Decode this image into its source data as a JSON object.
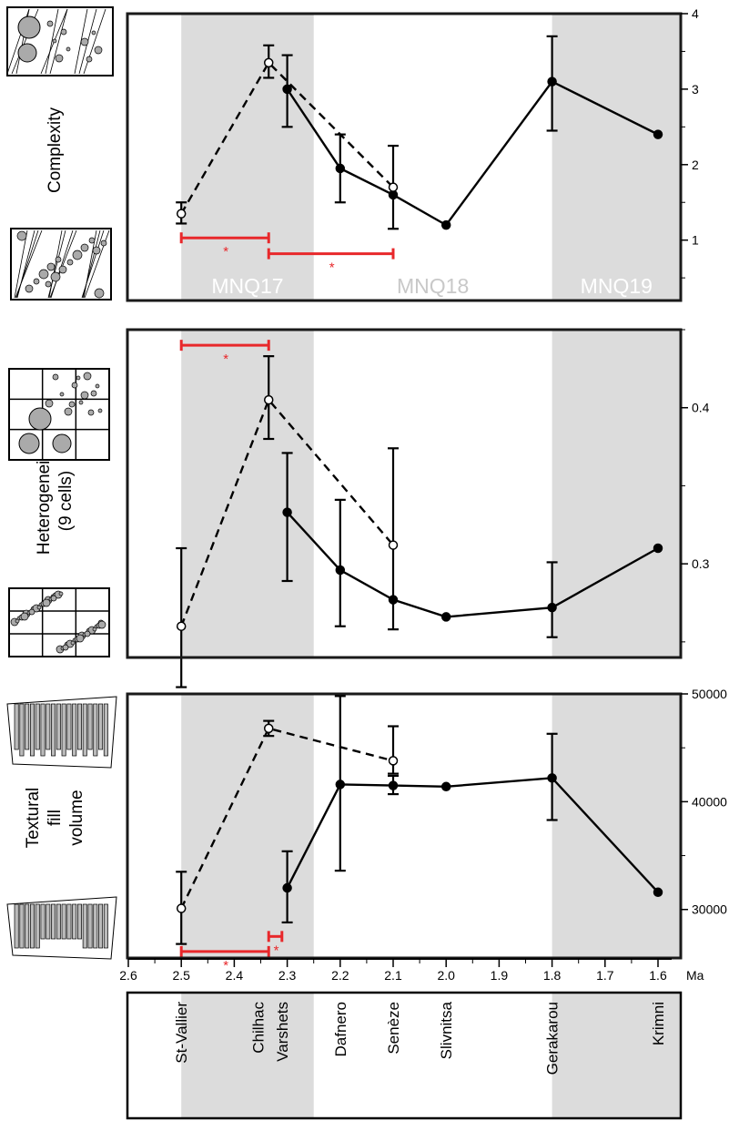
{
  "colors": {
    "shade": "#dcdcdc",
    "sig": "#e8282b",
    "line": "#000000"
  },
  "zones": [
    {
      "label": "MNQ17",
      "from": 2.5,
      "to": 2.25,
      "shaded": true
    },
    {
      "label": "MNQ18",
      "from": 2.25,
      "to": 1.8,
      "shaded": false
    },
    {
      "label": "MNQ19",
      "from": 1.8,
      "to": 1.55,
      "shaded": true
    }
  ],
  "x_axis": {
    "ticks": [
      "2.6",
      "2.5",
      "2.4",
      "2.3",
      "2.2",
      "2.1",
      "2.0",
      "1.9",
      "1.8",
      "1.7",
      "1.6"
    ],
    "unit": "Ma"
  },
  "sites": [
    "St-Vallier",
    "Chilhac",
    "Varshets",
    "Dafnero",
    "Senèze",
    "Slivnitsa",
    "Gerakarou",
    "Krimni"
  ],
  "chart_data": [
    {
      "type": "line",
      "ylabel": "Complexity",
      "ylim": [
        0.2,
        4.0
      ],
      "yticks": [
        "1",
        "2",
        "3",
        "4"
      ],
      "series": [
        {
          "style": "solid",
          "points": [
            {
              "x": 2.3,
              "y": 3.0,
              "lo": 2.5,
              "hi": 3.45
            },
            {
              "x": 2.2,
              "y": 1.95,
              "lo": 1.5,
              "hi": 2.4
            },
            {
              "x": 2.1,
              "y": 1.6,
              "lo": 1.15,
              "hi": 2.25
            },
            {
              "x": 2.0,
              "y": 1.2
            },
            {
              "x": 1.8,
              "y": 3.1,
              "lo": 2.45,
              "hi": 3.7
            },
            {
              "x": 1.6,
              "y": 2.4
            }
          ]
        },
        {
          "style": "dashed",
          "points": [
            {
              "x": 2.5,
              "y": 1.35,
              "lo": 1.22,
              "hi": 1.5
            },
            {
              "x": 2.335,
              "y": 3.35,
              "lo": 3.15,
              "hi": 3.58
            },
            {
              "x": 2.1,
              "y": 1.7
            }
          ]
        }
      ],
      "significance": [
        {
          "from": 2.5,
          "to": 2.335,
          "y": 1.03,
          "label": "*"
        },
        {
          "from": 2.335,
          "to": 2.1,
          "y": 0.82,
          "label": "*"
        }
      ]
    },
    {
      "type": "line",
      "ylabel": "Heterogeneity\n(9 cells)",
      "ylim": [
        0.24,
        0.45
      ],
      "yticks": [
        "0.3",
        "0.4"
      ],
      "series": [
        {
          "style": "solid",
          "points": [
            {
              "x": 2.3,
              "y": 0.333,
              "lo": 0.289,
              "hi": 0.371
            },
            {
              "x": 2.2,
              "y": 0.296,
              "lo": 0.26,
              "hi": 0.341
            },
            {
              "x": 2.1,
              "y": 0.277,
              "lo": 0.258,
              "hi": 0.374
            },
            {
              "x": 2.0,
              "y": 0.266
            },
            {
              "x": 1.8,
              "y": 0.272,
              "lo": 0.253,
              "hi": 0.301
            },
            {
              "x": 1.6,
              "y": 0.31
            }
          ]
        },
        {
          "style": "dashed",
          "points": [
            {
              "x": 2.5,
              "y": 0.26,
              "lo": 0.221,
              "hi": 0.31
            },
            {
              "x": 2.335,
              "y": 0.405,
              "lo": 0.38,
              "hi": 0.433
            },
            {
              "x": 2.1,
              "y": 0.312
            }
          ]
        }
      ],
      "significance": [
        {
          "from": 2.5,
          "to": 2.335,
          "y": 0.44,
          "label": "*"
        }
      ]
    },
    {
      "type": "line",
      "ylabel": "Textural\nfill\nvolume",
      "ylim": [
        25500,
        50000
      ],
      "yticks": [
        "30000",
        "40000",
        "50000"
      ],
      "series": [
        {
          "style": "solid",
          "points": [
            {
              "x": 2.3,
              "y": 32000,
              "lo": 28800,
              "hi": 35400
            },
            {
              "x": 2.2,
              "y": 41600,
              "lo": 33600,
              "hi": 49800
            },
            {
              "x": 2.1,
              "y": 41500,
              "lo": 40700,
              "hi": 42400
            },
            {
              "x": 2.0,
              "y": 41400
            },
            {
              "x": 1.8,
              "y": 42200,
              "lo": 38300,
              "hi": 46300
            },
            {
              "x": 1.6,
              "y": 31600
            }
          ]
        },
        {
          "style": "dashed",
          "points": [
            {
              "x": 2.5,
              "y": 30100,
              "lo": 26800,
              "hi": 33500
            },
            {
              "x": 2.335,
              "y": 46800,
              "lo": 46100,
              "hi": 47500
            },
            {
              "x": 2.1,
              "y": 43800,
              "lo": 42600,
              "hi": 47000
            }
          ]
        }
      ],
      "significance": [
        {
          "from": 2.5,
          "to": 2.335,
          "y": 26100,
          "label": "*"
        },
        {
          "from": 2.335,
          "to": 2.31,
          "y": 27500,
          "label": "*"
        }
      ]
    }
  ]
}
